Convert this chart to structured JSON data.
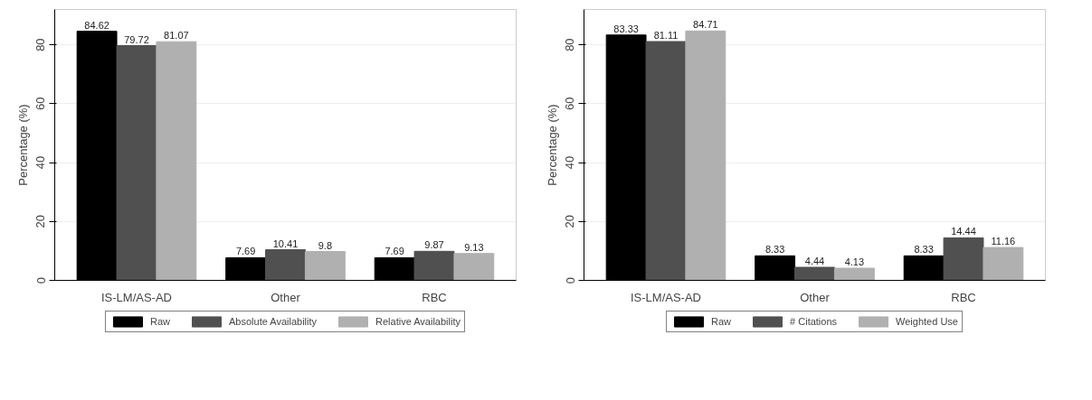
{
  "chart_data": [
    {
      "type": "bar",
      "ylabel": "Percentage (%)",
      "categories": [
        "IS-LM/AS-AD",
        "Other",
        "RBC"
      ],
      "series": [
        {
          "name": "Raw",
          "color": "#000000",
          "values": [
            84.62,
            7.69,
            7.69
          ]
        },
        {
          "name": "Absolute Availability",
          "color": "#505050",
          "values": [
            79.72,
            10.41,
            9.87
          ]
        },
        {
          "name": "Relative Availability",
          "color": "#b0b0b0",
          "values": [
            81.07,
            9.8,
            9.13
          ]
        }
      ],
      "ylim": [
        0,
        92
      ],
      "yticks": [
        0,
        20,
        40,
        60,
        80
      ],
      "grid": "y",
      "legend": "bottom",
      "data_labels": true
    },
    {
      "type": "bar",
      "ylabel": "Percentage (%)",
      "categories": [
        "IS-LM/AS-AD",
        "Other",
        "RBC"
      ],
      "series": [
        {
          "name": "Raw",
          "color": "#000000",
          "values": [
            83.33,
            8.33,
            8.33
          ]
        },
        {
          "name": "# Citations",
          "color": "#505050",
          "values": [
            81.11,
            4.44,
            14.44
          ]
        },
        {
          "name": "Weighted Use",
          "color": "#b0b0b0",
          "values": [
            84.71,
            4.13,
            11.16
          ]
        }
      ],
      "ylim": [
        0,
        92
      ],
      "yticks": [
        0,
        20,
        40,
        60,
        80
      ],
      "grid": "y",
      "legend": "bottom",
      "data_labels": true
    }
  ]
}
